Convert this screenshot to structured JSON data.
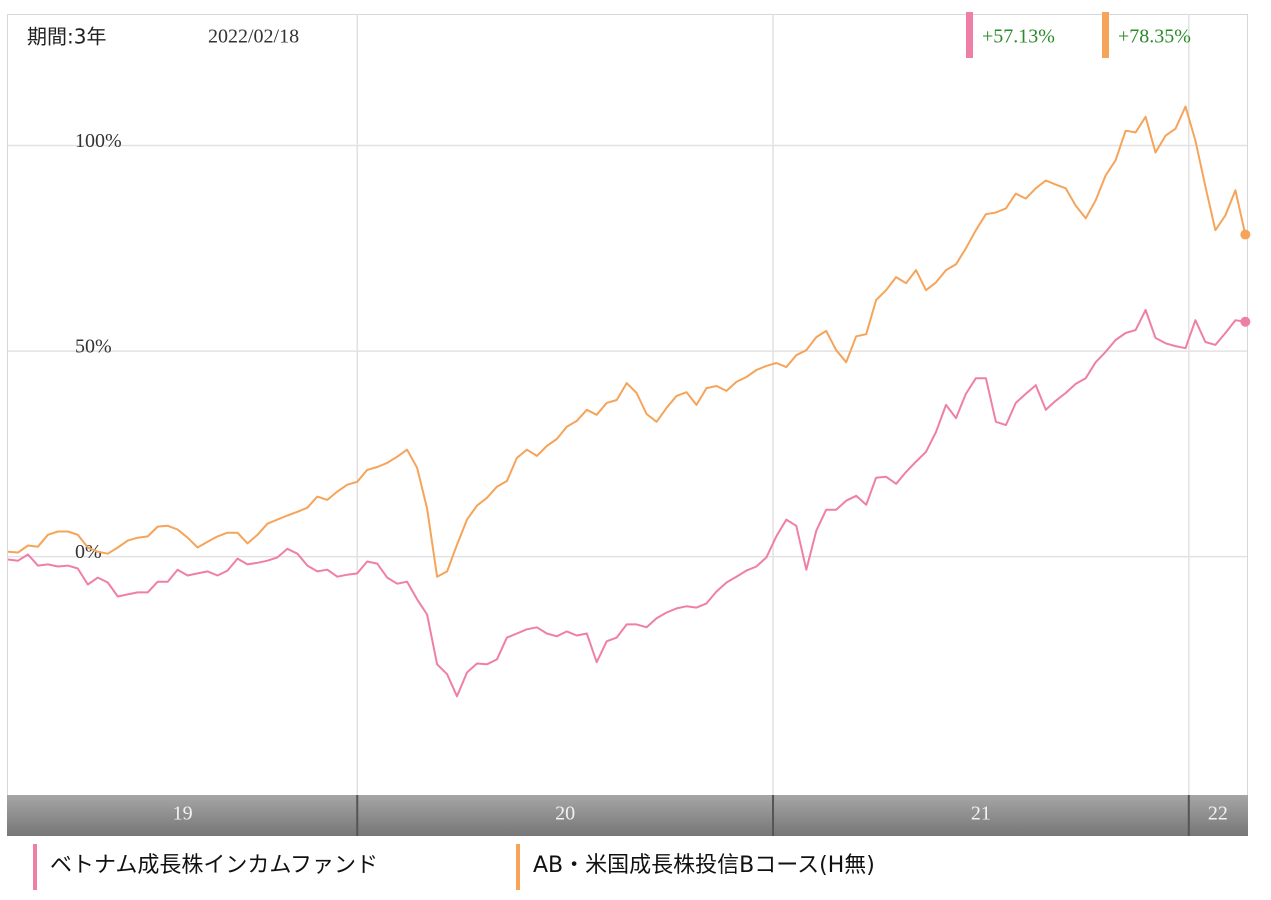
{
  "chart_data": {
    "type": "line",
    "period_label": "期間:3年",
    "date": "2022/02/18",
    "x": [
      19.16,
      19.184,
      19.208,
      19.232,
      19.256,
      19.28,
      19.304,
      19.328,
      19.352,
      19.376,
      19.4,
      19.424,
      19.448,
      19.472,
      19.496,
      19.52,
      19.544,
      19.568,
      19.592,
      19.616,
      19.64,
      19.664,
      19.688,
      19.712,
      19.736,
      19.76,
      19.784,
      19.808,
      19.832,
      19.856,
      19.88,
      19.904,
      19.928,
      19.952,
      19.976,
      20.0,
      20.024,
      20.048,
      20.072,
      20.096,
      20.12,
      20.144,
      20.168,
      20.192,
      20.216,
      20.24,
      20.264,
      20.288,
      20.312,
      20.336,
      20.36,
      20.384,
      20.408,
      20.432,
      20.456,
      20.48,
      20.504,
      20.528,
      20.552,
      20.576,
      20.6,
      20.624,
      20.648,
      20.672,
      20.696,
      20.72,
      20.744,
      20.768,
      20.792,
      20.816,
      20.84,
      20.864,
      20.888,
      20.912,
      20.936,
      20.96,
      20.984,
      21.008,
      21.032,
      21.056,
      21.08,
      21.104,
      21.128,
      21.152,
      21.176,
      21.2,
      21.224,
      21.248,
      21.272,
      21.296,
      21.32,
      21.344,
      21.368,
      21.392,
      21.416,
      21.44,
      21.464,
      21.488,
      21.512,
      21.536,
      21.56,
      21.584,
      21.608,
      21.632,
      21.656,
      21.68,
      21.704,
      21.728,
      21.752,
      21.776,
      21.8,
      21.824,
      21.848,
      21.872,
      21.896,
      21.92,
      21.944,
      21.968,
      21.992,
      22.016,
      22.04,
      22.064,
      22.088,
      22.112,
      22.136
    ],
    "xlim": [
      19.16,
      22.14
    ],
    "xticks": [
      19,
      20,
      21,
      22
    ],
    "ylim": [
      -58,
      132
    ],
    "yticks": [
      {
        "value": 0,
        "label": "0%"
      },
      {
        "value": 50,
        "label": "50%"
      },
      {
        "value": 100,
        "label": "100%"
      }
    ],
    "grid": true,
    "series": [
      {
        "name": "ベトナム成長株インカムファンド",
        "color": "#ef7fa7",
        "last_value_label": "+57.13%",
        "values": [
          -0.7,
          -1.0,
          0.5,
          -2.2,
          -1.9,
          -2.4,
          -2.2,
          -2.9,
          -6.8,
          -5.1,
          -6.3,
          -9.7,
          -9.2,
          -8.7,
          -8.7,
          -6.1,
          -6.1,
          -3.2,
          -4.6,
          -4.1,
          -3.6,
          -4.6,
          -3.4,
          -0.5,
          -1.9,
          -1.5,
          -1.0,
          -0.2,
          1.9,
          0.7,
          -2.2,
          -3.6,
          -3.2,
          -4.9,
          -4.4,
          -4.1,
          -1.2,
          -1.7,
          -5.1,
          -6.6,
          -6.1,
          -10.4,
          -14.1,
          -26.2,
          -28.6,
          -34.0,
          -28.2,
          -26.0,
          -26.2,
          -25.0,
          -19.7,
          -18.7,
          -17.7,
          -17.2,
          -18.7,
          -19.4,
          -18.2,
          -19.2,
          -18.7,
          -25.7,
          -20.6,
          -19.7,
          -16.5,
          -16.5,
          -17.2,
          -15.0,
          -13.6,
          -12.6,
          -12.1,
          -12.4,
          -11.4,
          -8.5,
          -6.3,
          -4.9,
          -3.4,
          -2.4,
          -0.2,
          4.9,
          9.0,
          7.5,
          -3.2,
          6.3,
          11.4,
          11.4,
          13.6,
          14.8,
          12.6,
          19.2,
          19.4,
          17.7,
          20.6,
          23.1,
          25.5,
          30.3,
          36.9,
          33.7,
          39.6,
          43.4,
          43.4,
          32.8,
          32.0,
          37.4,
          39.6,
          41.7,
          35.7,
          37.9,
          39.8,
          42.0,
          43.4,
          47.3,
          49.8,
          52.7,
          54.4,
          55.1,
          60.0,
          53.2,
          51.9,
          51.2,
          50.7,
          57.5,
          52.2,
          51.5,
          54.4,
          57.5,
          57.13
        ]
      },
      {
        "name": "AB・米国成長株投信Bコース(H無)",
        "color": "#f5a45a",
        "last_value_label": "+78.35%",
        "values": [
          1.2,
          1.0,
          2.7,
          2.4,
          5.3,
          6.1,
          6.1,
          5.3,
          2.2,
          1.2,
          0.7,
          2.2,
          3.9,
          4.6,
          4.9,
          7.3,
          7.5,
          6.6,
          4.6,
          2.2,
          3.6,
          4.9,
          5.8,
          5.8,
          3.2,
          5.3,
          8.0,
          9.0,
          10.0,
          10.9,
          11.9,
          14.6,
          13.8,
          15.8,
          17.5,
          18.2,
          21.1,
          21.8,
          22.8,
          24.3,
          26.0,
          21.6,
          11.7,
          -4.9,
          -3.6,
          2.9,
          9.0,
          12.4,
          14.3,
          17.0,
          18.4,
          24.0,
          26.0,
          24.5,
          26.9,
          28.6,
          31.6,
          33.0,
          35.7,
          34.5,
          37.4,
          38.1,
          42.2,
          39.8,
          34.7,
          32.8,
          36.2,
          39.1,
          40.0,
          36.9,
          41.0,
          41.5,
          40.3,
          42.5,
          43.7,
          45.4,
          46.4,
          47.1,
          46.1,
          49.0,
          50.2,
          53.4,
          54.9,
          50.2,
          47.3,
          53.6,
          54.1,
          62.4,
          64.8,
          68.0,
          66.5,
          69.7,
          64.8,
          66.7,
          69.7,
          71.1,
          75.0,
          79.4,
          83.3,
          83.7,
          84.7,
          88.3,
          87.1,
          89.6,
          91.5,
          90.5,
          89.6,
          85.4,
          82.3,
          86.7,
          92.7,
          96.4,
          103.6,
          103.2,
          107.0,
          98.3,
          102.4,
          104.1,
          109.5,
          101.2,
          90.0,
          79.4,
          83.0,
          89.1,
          78.35
        ]
      }
    ]
  }
}
